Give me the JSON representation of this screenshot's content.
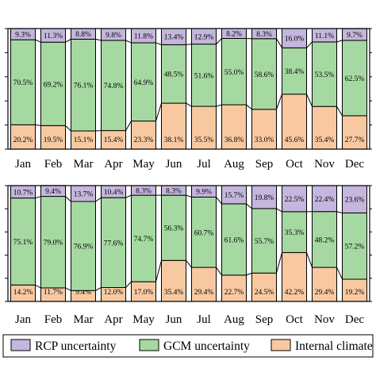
{
  "chart_data": [
    {
      "type": "bar",
      "stacked": true,
      "normalized_percent": true,
      "categories": [
        "Jan",
        "Feb",
        "Mar",
        "Apr",
        "May",
        "Jun",
        "Jul",
        "Aug",
        "Sep",
        "Oct",
        "Nov",
        "Dec"
      ],
      "series": [
        {
          "name": "Internal climate",
          "color": "#f8c9a1",
          "values": [
            20.2,
            19.5,
            15.1,
            15.4,
            23.3,
            38.1,
            35.5,
            36.8,
            33.0,
            45.6,
            35.4,
            27.7
          ],
          "labels": [
            "20.2%",
            "19.5%",
            "15.1%",
            "15.4%",
            "23.3%",
            "38.1%",
            "35.5%",
            "36.8%",
            "33.0%",
            "45.6%",
            "35.4%",
            "27.7%"
          ]
        },
        {
          "name": "GCM uncertainty",
          "color": "#a6d9a2",
          "values": [
            70.5,
            69.2,
            76.1,
            74.8,
            64.9,
            48.5,
            51.6,
            55.0,
            58.6,
            38.4,
            53.5,
            62.5
          ],
          "labels": [
            "70.5%",
            "69.2%",
            "76.1%",
            "74.8%",
            "64.9%",
            "48.5%",
            "51.6%",
            "55.0%",
            "58.6%",
            "38.4%",
            "53.5%",
            "62.5%"
          ]
        },
        {
          "name": "RCP uncertainty",
          "color": "#c5b6dd",
          "values": [
            9.3,
            11.3,
            8.8,
            9.8,
            11.8,
            13.4,
            12.9,
            8.2,
            8.3,
            16.0,
            11.1,
            9.7
          ],
          "labels": [
            "9.3%",
            "11.3%",
            "8.8%",
            "9.8%",
            "11.8%",
            "13.4%",
            "12.9%",
            "8.2%",
            "8.3%",
            "16.0%",
            "11.1%",
            "9.7%"
          ]
        }
      ],
      "ylim": [
        0,
        100
      ]
    },
    {
      "type": "bar",
      "stacked": true,
      "normalized_percent": true,
      "categories": [
        "Jan",
        "Feb",
        "Mar",
        "Apr",
        "May",
        "Jun",
        "Jul",
        "Aug",
        "Sep",
        "Oct",
        "Nov",
        "Dec"
      ],
      "series": [
        {
          "name": "Internal climate",
          "color": "#f8c9a1",
          "values": [
            14.2,
            11.7,
            9.4,
            12.0,
            17.0,
            35.4,
            29.4,
            22.7,
            24.5,
            42.2,
            29.4,
            19.2
          ],
          "labels": [
            "14.2%",
            "11.7%",
            "9.4%",
            "12.0%",
            "17.0%",
            "35.4%",
            "29.4%",
            "22.7%",
            "24.5%",
            "42.2%",
            "29.4%",
            "19.2%"
          ]
        },
        {
          "name": "GCM uncertainty",
          "color": "#a6d9a2",
          "values": [
            75.1,
            79.0,
            76.9,
            77.6,
            74.7,
            56.3,
            60.7,
            61.6,
            55.7,
            35.3,
            48.2,
            57.2
          ],
          "labels": [
            "75.1%",
            "79.0%",
            "76.9%",
            "77.6%",
            "74.7%",
            "56.3%",
            "60.7%",
            "61.6%",
            "55.7%",
            "35.3%",
            "48.2%",
            "57.2%"
          ]
        },
        {
          "name": "RCP uncertainty",
          "color": "#c5b6dd",
          "values": [
            10.7,
            9.4,
            13.7,
            10.4,
            8.3,
            8.3,
            9.9,
            15.7,
            19.8,
            22.5,
            22.4,
            23.6
          ],
          "labels": [
            "10.7%",
            "9.4%",
            "13.7%",
            "10.4%",
            "8.3%",
            "8.3%",
            "9.9%",
            "15.7%",
            "19.8%",
            "22.5%",
            "22.4%",
            "23.6%"
          ]
        }
      ],
      "ylim": [
        0,
        100
      ]
    }
  ],
  "legend": {
    "items": [
      {
        "label": "RCP uncertainty",
        "color": "#c5b6dd"
      },
      {
        "label": "GCM uncertainty",
        "color": "#a6d9a2"
      },
      {
        "label": "Internal climate",
        "color": "#f8c9a1"
      }
    ]
  }
}
